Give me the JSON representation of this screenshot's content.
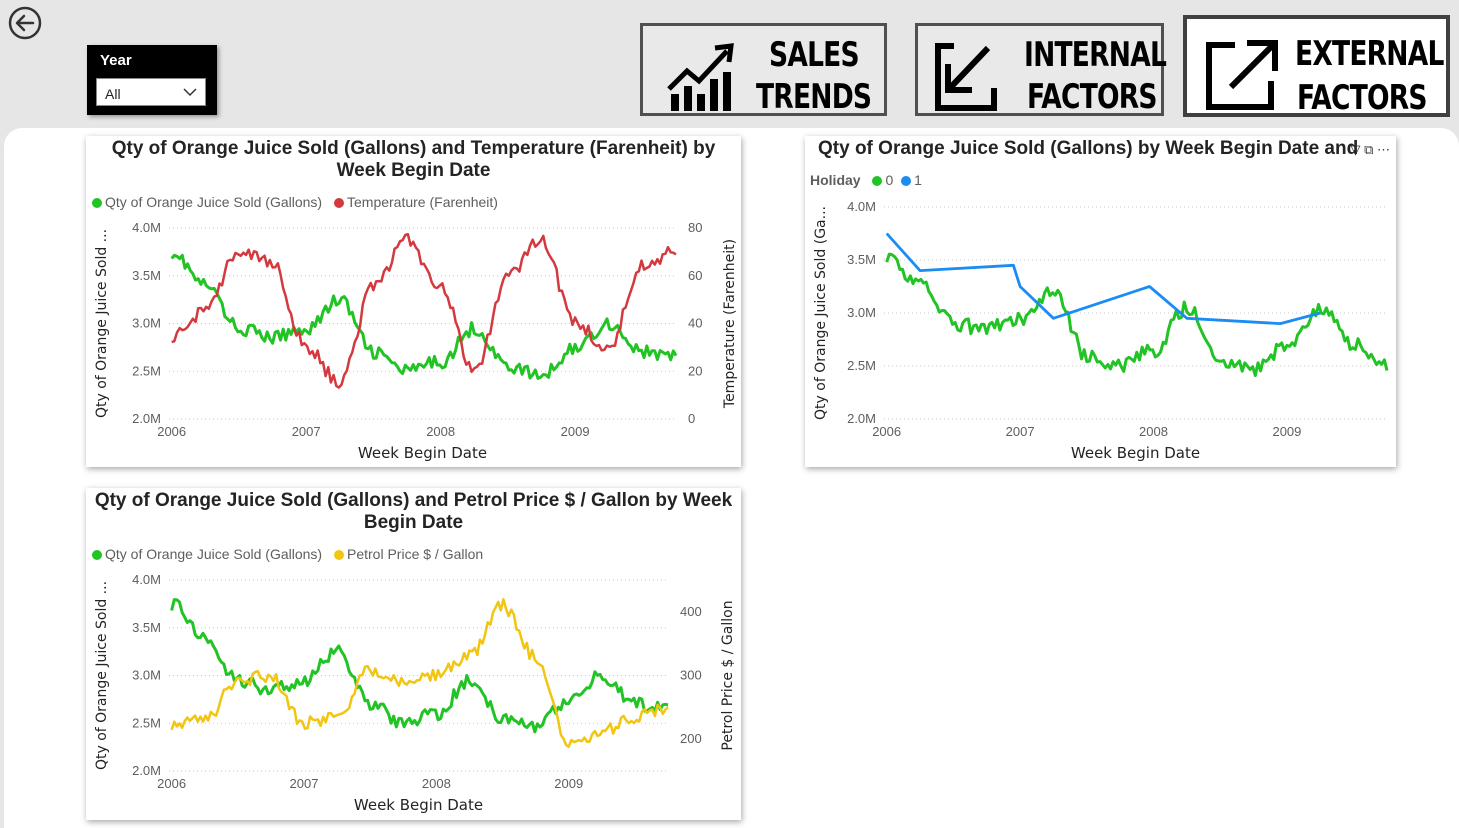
{
  "nav": {
    "year_slicer": {
      "title": "Year",
      "selected": "All"
    },
    "buttons": {
      "sales_trends": {
        "line1": "SALES",
        "line2": "TRENDS"
      },
      "internal": {
        "line1": "INTERNAL",
        "line2": "FACTORS"
      },
      "external": {
        "line1": "EXTERNAL",
        "line2": "FACTORS"
      }
    }
  },
  "colors": {
    "green": "#22c325",
    "red": "#d3393f",
    "yellow": "#f2c511",
    "blue": "#1a8cf2"
  },
  "charts": {
    "temp": {
      "title": "Qty of Orange Juice Sold (Gallons) and Temperature (Farenheit) by Week Begin Date",
      "legend": [
        "Qty of Orange Juice Sold (Gallons)",
        "Temperature (Farenheit)"
      ],
      "ylabel_left": "Qty of Orange Juice Sold ...",
      "ylabel_right": "Temperature (Farenheit)",
      "xlabel": "Week Begin Date",
      "yticks_left": [
        "4.0M",
        "3.5M",
        "3.0M",
        "2.5M",
        "2.0M"
      ],
      "yticks_right": [
        "80",
        "60",
        "40",
        "20",
        "0"
      ],
      "xticks": [
        "2006",
        "2007",
        "2008",
        "2009"
      ]
    },
    "holiday": {
      "title": "Qty of Orange Juice Sold (Gallons) by Week Begin Date and",
      "legend_title": "Holiday",
      "legend": [
        "0",
        "1"
      ],
      "ylabel_left": "Qty of Orange Juice Sold (Ga...",
      "xlabel": "Week Begin Date",
      "yticks_left": [
        "4.0M",
        "3.5M",
        "3.0M",
        "2.5M",
        "2.0M"
      ],
      "xticks": [
        "2006",
        "2007",
        "2008",
        "2009"
      ]
    },
    "petrol": {
      "title": "Qty of Orange Juice Sold (Gallons) and Petrol Price $ / Gallon by Week Begin Date",
      "legend": [
        "Qty of Orange Juice Sold (Gallons)",
        "Petrol Price $ / Gallon"
      ],
      "ylabel_left": "Qty of Orange Juice Sold ...",
      "ylabel_right": "Petrol Price $ / Gallon",
      "xlabel": "Week Begin Date",
      "yticks_left": [
        "4.0M",
        "3.5M",
        "3.0M",
        "2.5M",
        "2.0M"
      ],
      "yticks_right": [
        "400",
        "300",
        "200"
      ],
      "xticks": [
        "2006",
        "2007",
        "2008",
        "2009"
      ]
    }
  },
  "chart_data": [
    {
      "type": "line",
      "title": "Qty of Orange Juice Sold (Gallons) and Temperature (Farenheit) by Week Begin Date",
      "xlabel": "Week Begin Date",
      "ylabel": "Qty of Orange Juice Sold ...",
      "ylim": [
        2000000,
        4000000
      ],
      "y2label": "Temperature (Farenheit)",
      "y2lim": [
        0,
        80
      ],
      "x": [
        2006.0,
        2006.25,
        2006.5,
        2006.75,
        2007.0,
        2007.25,
        2007.5,
        2007.75,
        2008.0,
        2008.25,
        2008.5,
        2008.75,
        2009.0,
        2009.25,
        2009.5,
        2009.75
      ],
      "series": [
        {
          "name": "Qty of Orange Juice Sold (Gallons)",
          "axis": "left",
          "values": [
            3750000,
            3400000,
            2950000,
            2850000,
            2950000,
            3250000,
            2700000,
            2500000,
            2600000,
            2950000,
            2550000,
            2450000,
            2750000,
            3000000,
            2700000,
            2650000
          ]
        },
        {
          "name": "Temperature (Farenheit)",
          "axis": "right",
          "values": [
            35,
            45,
            70,
            65,
            30,
            15,
            55,
            75,
            55,
            20,
            60,
            75,
            40,
            30,
            65,
            70
          ]
        }
      ]
    },
    {
      "type": "line",
      "title": "Qty of Orange Juice Sold (Gallons) by Week Begin Date and",
      "xlabel": "Week Begin Date",
      "ylabel": "Qty of Orange Juice Sold (Ga...",
      "ylim": [
        2000000,
        4000000
      ],
      "legend_title": "Holiday",
      "x": [
        2006.0,
        2006.25,
        2006.5,
        2006.75,
        2007.0,
        2007.25,
        2007.5,
        2007.75,
        2008.0,
        2008.25,
        2008.5,
        2008.75,
        2009.0,
        2009.25,
        2009.5,
        2009.75
      ],
      "series": [
        {
          "name": "0",
          "values": [
            3550000,
            3250000,
            2900000,
            2850000,
            2950000,
            3200000,
            2600000,
            2500000,
            2650000,
            3050000,
            2550000,
            2450000,
            2700000,
            3050000,
            2700000,
            2500000
          ]
        },
        {
          "name": "1",
          "x": [
            2006.0,
            2006.25,
            2006.95,
            2007.0,
            2007.25,
            2007.97,
            2008.25,
            2008.95,
            2009.25
          ],
          "values": [
            3750000,
            3400000,
            3450000,
            3250000,
            2950000,
            3250000,
            2950000,
            2900000,
            3000000
          ]
        }
      ]
    },
    {
      "type": "line",
      "title": "Qty of Orange Juice Sold (Gallons) and Petrol Price $ / Gallon by Week Begin Date",
      "xlabel": "Week Begin Date",
      "ylabel": "Qty of Orange Juice Sold ...",
      "ylim": [
        2000000,
        4000000
      ],
      "y2label": "Petrol Price $ / Gallon",
      "y2lim": [
        150,
        450
      ],
      "x": [
        2006.0,
        2006.25,
        2006.5,
        2006.75,
        2007.0,
        2007.25,
        2007.5,
        2007.75,
        2008.0,
        2008.25,
        2008.5,
        2008.75,
        2009.0,
        2009.25,
        2009.5,
        2009.75
      ],
      "series": [
        {
          "name": "Qty of Orange Juice Sold (Gallons)",
          "axis": "left",
          "values": [
            3750000,
            3400000,
            2950000,
            2850000,
            2950000,
            3250000,
            2700000,
            2500000,
            2600000,
            2950000,
            2550000,
            2450000,
            2750000,
            3000000,
            2700000,
            2650000
          ]
        },
        {
          "name": "Petrol Price $ / Gallon",
          "axis": "right",
          "values": [
            225,
            230,
            290,
            300,
            225,
            235,
            310,
            290,
            300,
            330,
            410,
            330,
            190,
            210,
            235,
            250
          ]
        }
      ]
    }
  ]
}
